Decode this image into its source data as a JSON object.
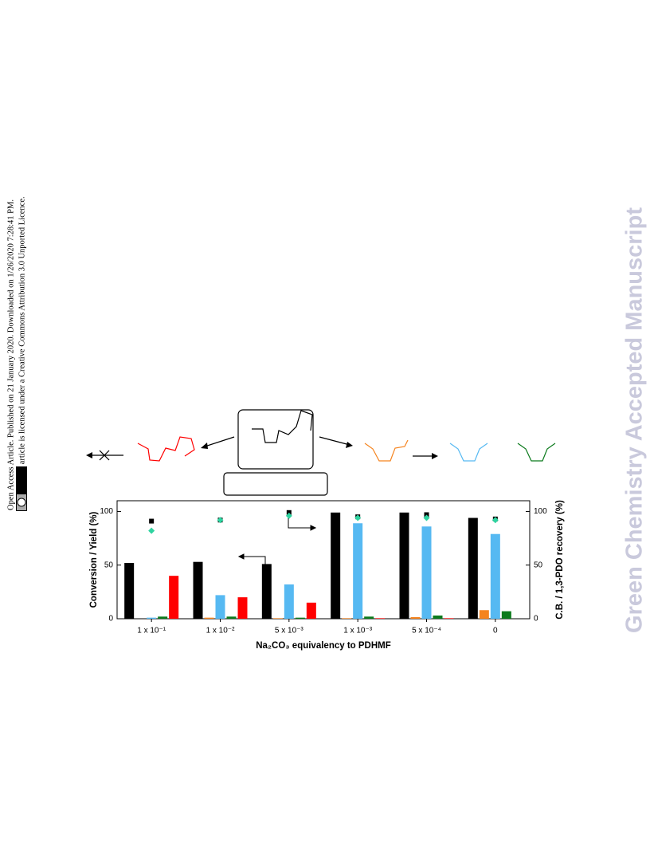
{
  "sidebar": {
    "line1": "Open Access Article. Published on 21 January 2020. Downloaded on 1/26/2020 7:28:41 PM.",
    "line2": "This article is licensed under a Creative Commons Attribution 3.0 Unported Licence."
  },
  "watermark": "Green Chemistry Accepted Manuscript",
  "chart_data": {
    "type": "bar",
    "y_label": "Conversion / Yield (%)",
    "y2_label": "C.B. / 1,3-PDO recovery (%)",
    "x_label": "Na₂CO₃ equivalency to PDHMF",
    "categories": [
      "1 x 10⁻¹",
      "1 x 10⁻²",
      "5 x 10⁻³",
      "1 x 10⁻³",
      "5 x 10⁻⁴",
      "0"
    ],
    "series": [
      {
        "color": "#000000",
        "values": [
          52,
          53,
          51,
          99,
          99,
          94
        ]
      },
      {
        "color": "#f5841f",
        "values": [
          0,
          1,
          0.5,
          0.5,
          1.5,
          8
        ]
      },
      {
        "color": "#56b9f2",
        "values": [
          1,
          22,
          32,
          89,
          86,
          79
        ]
      },
      {
        "color": "#0b7a1c",
        "values": [
          2,
          2,
          1,
          2,
          3,
          7
        ]
      },
      {
        "color": "#ff0000",
        "values": [
          40,
          20,
          15,
          0.5,
          0.5,
          0
        ]
      },
      {
        "color": "#000000",
        "marker": "square",
        "axis": "y2",
        "values": [
          91,
          92,
          99,
          95,
          97,
          93
        ]
      },
      {
        "color": "#2fd3a0",
        "marker": "diamond",
        "axis": "y2",
        "values": [
          82,
          92,
          96,
          94,
          94,
          92
        ]
      }
    ],
    "ylim": [
      0,
      110
    ],
    "yticks": [
      0,
      50,
      100
    ],
    "y2lim": [
      0,
      110
    ],
    "y2ticks": [
      0,
      50,
      100
    ]
  }
}
